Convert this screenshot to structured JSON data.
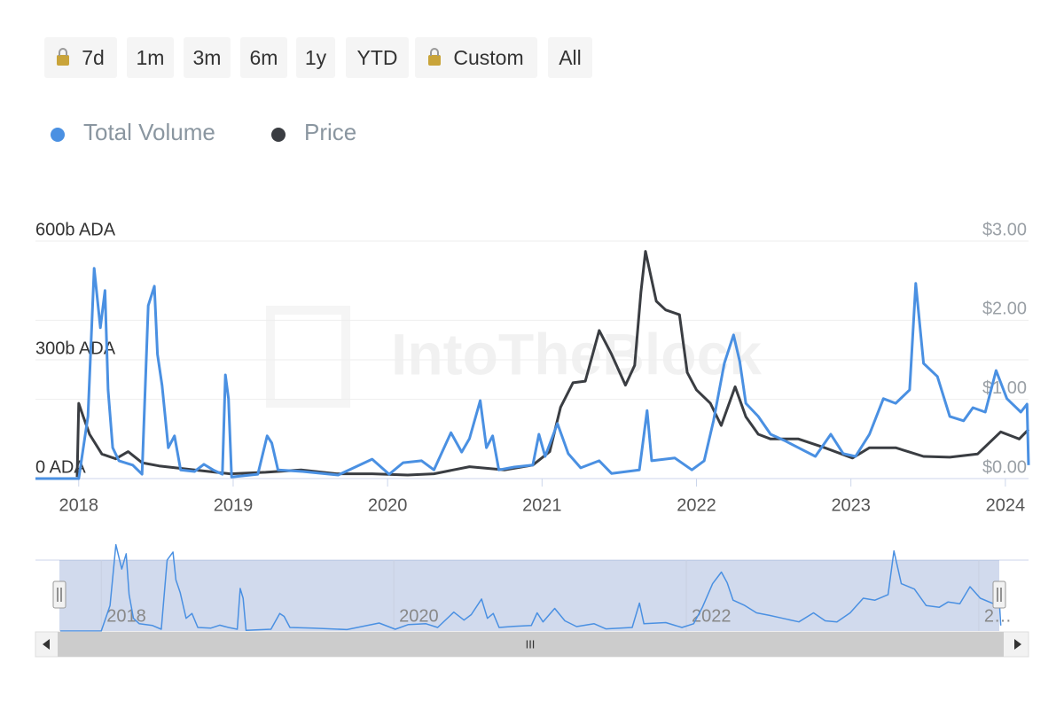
{
  "buttons": [
    "7d",
    "1m",
    "3m",
    "6m",
    "1y",
    "YTD",
    "Custom",
    "All"
  ],
  "watermark": "IntoTheBlock",
  "scrollbar_label": "III",
  "chart_data": {
    "type": "line",
    "xlim": [
      2017.72,
      2024.15
    ],
    "xticks": [
      2018,
      2019,
      2020,
      2021,
      2022,
      2023,
      2024
    ],
    "ylim": [
      0,
      600
    ],
    "yticks": [
      {
        "value": 0,
        "label": "0 ADA"
      },
      {
        "value": 300,
        "label": "300b ADA"
      },
      {
        "value": 600,
        "label": "600b ADA"
      }
    ],
    "y2lim": [
      0,
      3
    ],
    "y2ticks": [
      {
        "value": 0,
        "label": "$0.00"
      },
      {
        "value": 1,
        "label": "$1.00"
      },
      {
        "value": 2,
        "label": "$2.00"
      },
      {
        "value": 3,
        "label": "$3.00"
      }
    ],
    "grid": true,
    "legend": "top-left",
    "series": [
      {
        "name": "Total Volume",
        "color": "#4a90e2",
        "axis": "y",
        "x": [
          2017.72,
          2018.0,
          2018.06,
          2018.1,
          2018.14,
          2018.17,
          2018.19,
          2018.22,
          2018.26,
          2018.35,
          2018.41,
          2018.45,
          2018.49,
          2018.51,
          2018.54,
          2018.58,
          2018.62,
          2018.66,
          2018.75,
          2018.81,
          2018.87,
          2018.93,
          2018.95,
          2018.97,
          2018.99,
          2019.16,
          2019.22,
          2019.25,
          2019.29,
          2019.45,
          2019.68,
          2019.9,
          2020.01,
          2020.1,
          2020.22,
          2020.3,
          2020.41,
          2020.48,
          2020.53,
          2020.6,
          2020.64,
          2020.68,
          2020.72,
          2020.82,
          2020.94,
          2020.98,
          2021.02,
          2021.1,
          2021.17,
          2021.25,
          2021.37,
          2021.45,
          2021.63,
          2021.68,
          2021.71,
          2021.86,
          2021.97,
          2022.05,
          2022.11,
          2022.18,
          2022.24,
          2022.28,
          2022.32,
          2022.4,
          2022.48,
          2022.57,
          2022.66,
          2022.77,
          2022.87,
          2022.95,
          2023.03,
          2023.12,
          2023.21,
          2023.29,
          2023.38,
          2023.42,
          2023.47,
          2023.56,
          2023.64,
          2023.73,
          2023.79,
          2023.87,
          2023.94,
          2024.01,
          2024.1,
          2024.14,
          2024.15
        ],
        "values": [
          0,
          0,
          157,
          531,
          381,
          475,
          224,
          78,
          45,
          34,
          11,
          437,
          486,
          314,
          235,
          78,
          108,
          22,
          18,
          36,
          22,
          11,
          262,
          202,
          4,
          11,
          108,
          90,
          22,
          18,
          9,
          49,
          11,
          40,
          45,
          22,
          116,
          67,
          101,
          197,
          78,
          108,
          22,
          29,
          34,
          112,
          56,
          139,
          63,
          27,
          45,
          13,
          22,
          172,
          45,
          52,
          22,
          45,
          146,
          291,
          363,
          296,
          190,
          157,
          112,
          96,
          78,
          56,
          112,
          63,
          56,
          112,
          202,
          190,
          224,
          493,
          291,
          258,
          157,
          146,
          179,
          168,
          273,
          202,
          168,
          188,
          34
        ]
      },
      {
        "name": "Price",
        "color": "#3a3d42",
        "axis": "y2",
        "x": [
          2017.99,
          2018.0,
          2018.03,
          2018.07,
          2018.15,
          2018.24,
          2018.32,
          2018.41,
          2018.52,
          2018.75,
          2018.98,
          2019.21,
          2019.44,
          2019.67,
          2019.9,
          2020.13,
          2020.3,
          2020.53,
          2020.76,
          2020.94,
          2021.05,
          2021.12,
          2021.2,
          2021.28,
          2021.37,
          2021.45,
          2021.54,
          2021.6,
          2021.64,
          2021.67,
          2021.74,
          2021.8,
          2021.89,
          2021.94,
          2022.0,
          2022.09,
          2022.16,
          2022.25,
          2022.32,
          2022.4,
          2022.48,
          2022.66,
          2022.83,
          2023.01,
          2023.12,
          2023.29,
          2023.47,
          2023.64,
          2023.82,
          2023.97,
          2024.09,
          2024.15
        ],
        "values": [
          0.02,
          0.95,
          0.78,
          0.56,
          0.31,
          0.25,
          0.34,
          0.2,
          0.16,
          0.11,
          0.06,
          0.08,
          0.11,
          0.06,
          0.06,
          0.045,
          0.06,
          0.15,
          0.11,
          0.17,
          0.34,
          0.9,
          1.21,
          1.23,
          1.87,
          1.57,
          1.18,
          1.43,
          2.35,
          2.87,
          2.24,
          2.13,
          2.07,
          1.34,
          1.12,
          0.95,
          0.67,
          1.16,
          0.78,
          0.56,
          0.5,
          0.5,
          0.39,
          0.26,
          0.39,
          0.39,
          0.28,
          0.27,
          0.31,
          0.59,
          0.5,
          0.62
        ]
      }
    ],
    "navigator": {
      "xlim": [
        2017.55,
        2024.34
      ],
      "xticks": [
        2018,
        2020,
        2022,
        {
          "value": 2024,
          "label": "2…"
        }
      ]
    }
  }
}
